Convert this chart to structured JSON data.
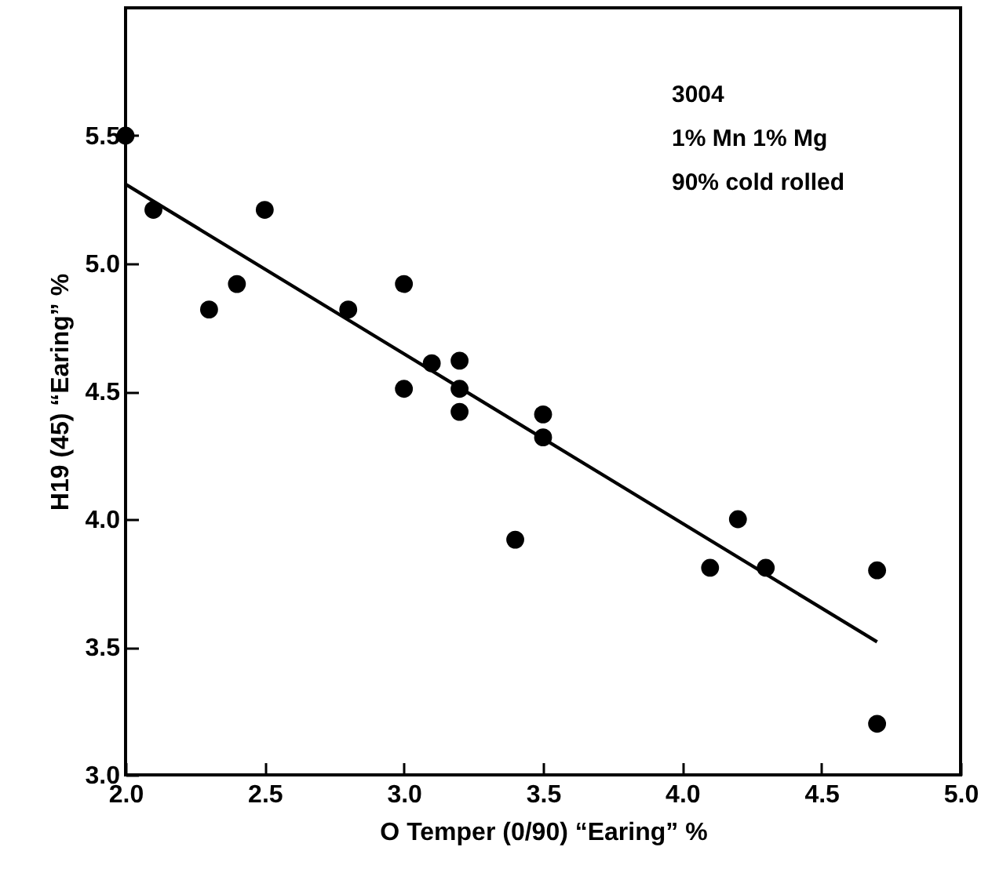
{
  "chart_data": {
    "type": "scatter",
    "xlabel": "O Temper (0/90) “Earing” %",
    "ylabel": "H19 (45) “Earing” %",
    "annotations": [
      "3004",
      "1% Mn 1% Mg",
      "90% cold rolled"
    ],
    "xlim": [
      2.0,
      5.0
    ],
    "xticks": [
      {
        "value": 2,
        "label": "2.0"
      },
      2.5,
      {
        "value": 3,
        "label": "3.0"
      },
      3.5,
      {
        "value": 4,
        "label": "4.0"
      },
      4.5,
      {
        "value": 5,
        "label": "5.0"
      }
    ],
    "ylim": [
      3.0,
      6.0
    ],
    "yticks": [
      {
        "value": 3,
        "label": "3.0"
      },
      3.5,
      {
        "value": 4,
        "label": "4.0"
      },
      4.5,
      {
        "value": 5,
        "label": "5.0"
      },
      5.5
    ],
    "marker": "circle",
    "series": [
      {
        "type": "scatter",
        "color": "#000000",
        "x": [
          2.0,
          2.1,
          2.5,
          2.3,
          2.4,
          2.8,
          3.0,
          3.0,
          3.1,
          3.2,
          3.2,
          3.2,
          3.5,
          3.5,
          3.4,
          4.1,
          4.2,
          4.3,
          4.7,
          4.7
        ],
        "values": [
          5.5,
          5.21,
          5.21,
          4.82,
          4.92,
          4.82,
          4.92,
          4.51,
          4.61,
          4.62,
          4.51,
          4.42,
          4.41,
          4.32,
          3.92,
          3.81,
          4.0,
          3.81,
          3.8,
          3.2
        ]
      },
      {
        "type": "line",
        "color": "#000000",
        "marker": "none",
        "x": [
          2.0,
          4.7
        ],
        "values": [
          5.31,
          3.52
        ]
      }
    ]
  }
}
